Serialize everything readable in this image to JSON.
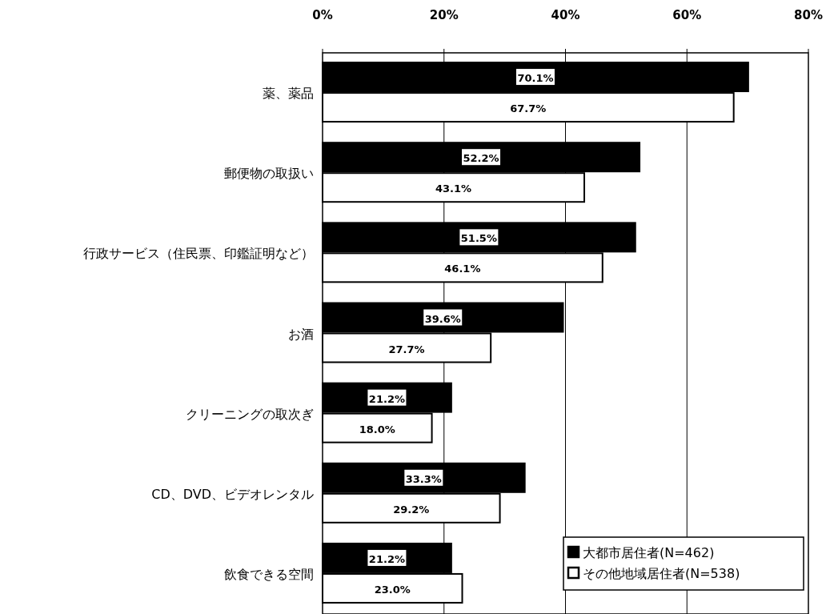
{
  "chart_data": {
    "type": "bar",
    "orientation": "horizontal",
    "categories": [
      "薬、薬品",
      "郵便物の取扱い",
      "行政サービス（住民票、印鑑証明など）",
      "お酒",
      "クリーニングの取次ぎ",
      "CD、DVD、ビデオレンタル",
      "飲食できる空間"
    ],
    "series": [
      {
        "name": "大都市居住者(N=462)",
        "color": "#000000",
        "values": [
          70.1,
          52.2,
          51.5,
          39.6,
          21.2,
          33.3,
          21.2
        ],
        "value_labels": [
          "70.1%",
          "52.2%",
          "51.5%",
          "39.6%",
          "21.2%",
          "33.3%",
          "21.2%"
        ]
      },
      {
        "name": "その他地域居住者(N=538)",
        "color": "#ffffff",
        "values": [
          67.7,
          43.1,
          46.1,
          27.7,
          18.0,
          29.2,
          23.0
        ],
        "value_labels": [
          "67.7%",
          "43.1%",
          "46.1%",
          "27.7%",
          "18.0%",
          "29.2%",
          "23.0%"
        ]
      }
    ],
    "xlim": [
      0,
      80
    ],
    "xticks": [
      {
        "value": 0,
        "label": "0%"
      },
      {
        "value": 20,
        "label": "20%"
      },
      {
        "value": 40,
        "label": "40%"
      },
      {
        "value": 60,
        "label": "60%"
      },
      {
        "value": 80,
        "label": "80%"
      }
    ],
    "grid": "x",
    "legend": "bottom right"
  }
}
